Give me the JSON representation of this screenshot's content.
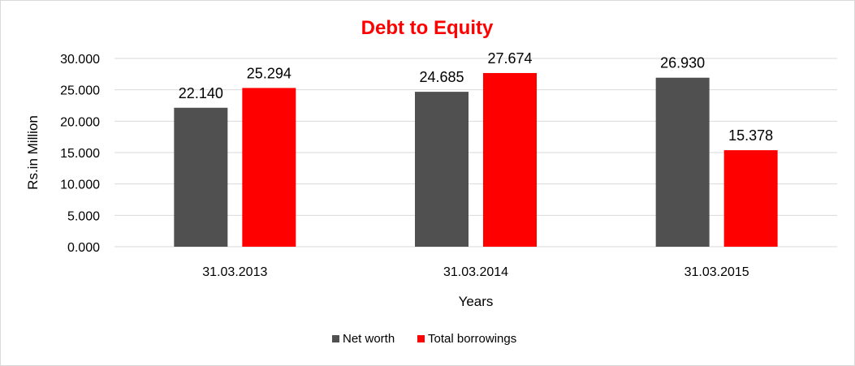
{
  "chart_data": {
    "type": "bar",
    "title": "Debt to Equity",
    "title_color": "#ff0000",
    "xlabel": "Years",
    "ylabel": "Rs.in Million",
    "categories": [
      "31.03.2013",
      "31.03.2014",
      "31.03.2015"
    ],
    "series": [
      {
        "name": "Net worth",
        "color": "#505050",
        "values": [
          22.14,
          24.685,
          26.93
        ],
        "labels": [
          "22.140",
          "24.685",
          "26.930"
        ]
      },
      {
        "name": "Total borrowings",
        "color": "#ff0000",
        "values": [
          25.294,
          27.674,
          15.378
        ],
        "labels": [
          "25.294",
          "27.674",
          "15.378"
        ]
      }
    ],
    "ylim": [
      0,
      30
    ],
    "yticks": [
      0,
      5,
      10,
      15,
      20,
      25,
      30
    ],
    "ytick_labels": [
      "0.000",
      "5.000",
      "10.000",
      "15.000",
      "20.000",
      "25.000",
      "30.000"
    ],
    "grid": true,
    "legend_position": "bottom"
  }
}
